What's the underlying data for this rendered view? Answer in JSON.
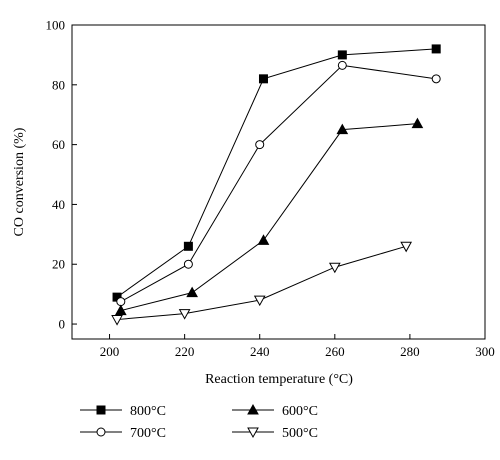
{
  "chart_data": {
    "type": "line",
    "xlabel": "Reaction temperature (°C)",
    "ylabel": "CO conversion (%)",
    "xlim": [
      190,
      300
    ],
    "ylim": [
      -5,
      100
    ],
    "xticks": [
      200,
      220,
      240,
      260,
      280,
      300
    ],
    "yticks": [
      0,
      20,
      40,
      60,
      80,
      100
    ],
    "grid": false,
    "legend_position": "bottom",
    "series": [
      {
        "name": "800°C",
        "marker": "filled-square",
        "x": [
          202,
          221,
          241,
          262,
          287
        ],
        "y": [
          9,
          26,
          82,
          90,
          92
        ]
      },
      {
        "name": "700°C",
        "marker": "open-circle",
        "x": [
          203,
          221,
          240,
          262,
          287
        ],
        "y": [
          7.5,
          20,
          60,
          86.5,
          82
        ]
      },
      {
        "name": "600°C",
        "marker": "filled-triangle-up",
        "x": [
          203,
          222,
          241,
          262,
          282
        ],
        "y": [
          4.5,
          10.5,
          28,
          65,
          67
        ]
      },
      {
        "name": "500°C",
        "marker": "open-triangle-down",
        "x": [
          202,
          220,
          240,
          260,
          279
        ],
        "y": [
          1.5,
          3.5,
          8,
          19,
          26
        ]
      }
    ]
  }
}
